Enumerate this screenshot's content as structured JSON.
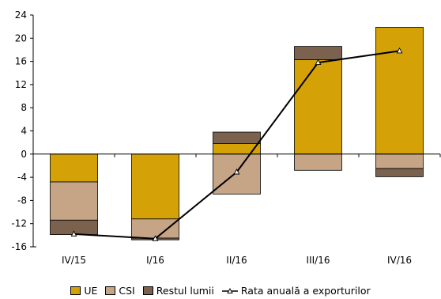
{
  "chart_data": {
    "type": "bar",
    "stacked": true,
    "categories": [
      "IV/15",
      "I/16",
      "II/16",
      "III/16",
      "IV/16"
    ],
    "series": [
      {
        "name": "UE",
        "kind": "bar",
        "color": "#D4A106",
        "values": [
          -4.8,
          -11.2,
          1.8,
          16.3,
          21.9
        ]
      },
      {
        "name": "CSI",
        "kind": "bar",
        "color": "#C6A486",
        "values": [
          -6.6,
          -3.3,
          -6.9,
          -2.8,
          -2.5
        ]
      },
      {
        "name": "Restul lumii",
        "kind": "bar",
        "color": "#7B624F",
        "values": [
          -2.5,
          -0.3,
          2.0,
          2.3,
          -1.4
        ]
      },
      {
        "name": "Rata anuală a exporturilor",
        "kind": "line",
        "color": "#000000",
        "values": [
          -13.8,
          -14.6,
          -3.1,
          15.8,
          17.8
        ]
      }
    ],
    "yticks": [
      24,
      20,
      16,
      12,
      8,
      4,
      0,
      -4,
      -8,
      -12,
      -16
    ],
    "ylim": [
      -16,
      24
    ],
    "grid": false,
    "legend": "bottom"
  }
}
